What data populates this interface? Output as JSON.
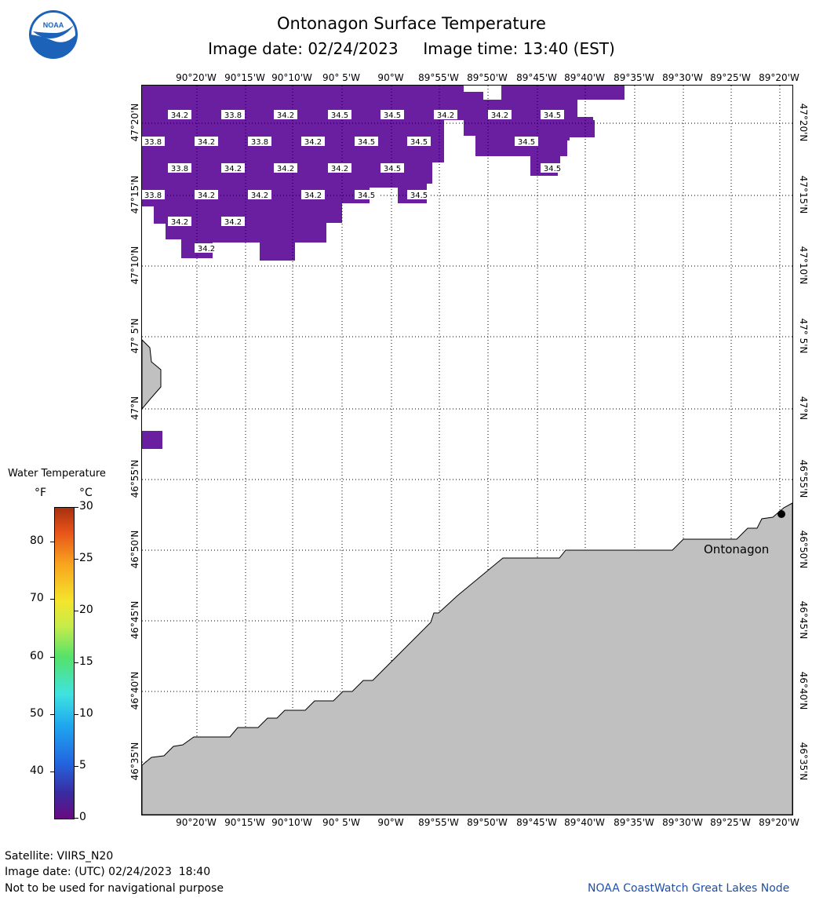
{
  "header": {
    "title": "Ontonagon Surface Temperature",
    "image_date": "Image date: 02/24/2023",
    "image_time": "Image time: 13:40 (EST)"
  },
  "logo": {
    "text": "NOAA"
  },
  "map": {
    "lon_labels": [
      "90°20'W",
      "90°15'W",
      "90°10'W",
      "90° 5'W",
      "90°W",
      "89°55'W",
      "89°50'W",
      "89°45'W",
      "89°40'W",
      "89°35'W",
      "89°30'W",
      "89°25'W",
      "89°20'W"
    ],
    "lat_labels": [
      "47°20'N",
      "47°15'N",
      "47°10'N",
      "47° 5'N",
      "47°N",
      "46°55'N",
      "46°50'N",
      "46°45'N",
      "46°40'N",
      "46°35'N"
    ],
    "water_color": "#6a1fa0",
    "land_color": "#c0c0c0",
    "place_label": "Ontonagon",
    "temperature_labels": [
      {
        "value": "34.2",
        "lon": "90°20'W",
        "lat": "47°19.8'N"
      },
      {
        "value": "33.8",
        "lon": "90°16'W",
        "lat": "47°19.8'N"
      },
      {
        "value": "34.2",
        "lon": "90°10'W",
        "lat": "47°19.8'N"
      },
      {
        "value": "34.5",
        "lon": "90°5'W",
        "lat": "47°19.8'N"
      },
      {
        "value": "34.5",
        "lon": "90°0'W",
        "lat": "47°19.8'N"
      },
      {
        "value": "34.2",
        "lon": "89°54'W",
        "lat": "47°19.8'N"
      },
      {
        "value": "34.2",
        "lon": "89°49'W",
        "lat": "47°19.8'N"
      },
      {
        "value": "34.5",
        "lon": "89°43'W",
        "lat": "47°19.8'N"
      },
      {
        "value": "33.8",
        "lon": "90°24'W",
        "lat": "47°18'N"
      },
      {
        "value": "34.2",
        "lon": "90°19'W",
        "lat": "47°18'N"
      },
      {
        "value": "33.8",
        "lon": "90°13'W",
        "lat": "47°18'N"
      },
      {
        "value": "34.2",
        "lon": "90°7'W",
        "lat": "47°18'N"
      },
      {
        "value": "34.5",
        "lon": "90°2'W",
        "lat": "47°18'N"
      },
      {
        "value": "34.5",
        "lon": "89°56'W",
        "lat": "47°18'N"
      },
      {
        "value": "34.5",
        "lon": "89°46'W",
        "lat": "47°18'N"
      },
      {
        "value": "33.8",
        "lon": "90°21'W",
        "lat": "47°16.5'N"
      },
      {
        "value": "34.2",
        "lon": "90°16'W",
        "lat": "47°16.5'N"
      },
      {
        "value": "34.2",
        "lon": "90°10'W",
        "lat": "47°16.5'N"
      },
      {
        "value": "34.2",
        "lon": "90°4'W",
        "lat": "47°16.5'N"
      },
      {
        "value": "34.5",
        "lon": "89°59'W",
        "lat": "47°16.5'N"
      },
      {
        "value": "34.5",
        "lon": "89°43'W",
        "lat": "47°16.5'N"
      },
      {
        "value": "33.8",
        "lon": "90°24'W",
        "lat": "47°15'N"
      },
      {
        "value": "34.2",
        "lon": "90°19'W",
        "lat": "47°15'N"
      },
      {
        "value": "34.2",
        "lon": "90°13'W",
        "lat": "47°15'N"
      },
      {
        "value": "34.2",
        "lon": "90°7'W",
        "lat": "47°15'N"
      },
      {
        "value": "34.5",
        "lon": "90°2'W",
        "lat": "47°15'N"
      },
      {
        "value": "34.5",
        "lon": "89°56'W",
        "lat": "47°15'N"
      },
      {
        "value": "34.2",
        "lon": "90°21'W",
        "lat": "47°13.5'N"
      },
      {
        "value": "34.2",
        "lon": "90°16'W",
        "lat": "47°13.5'N"
      },
      {
        "value": "34.2",
        "lon": "90°19'W",
        "lat": "47°12'N"
      }
    ]
  },
  "legend": {
    "title": "Water Temperature",
    "unit_f": "°F",
    "unit_c": "°C",
    "f_ticks": [
      "80",
      "70",
      "60",
      "50",
      "40"
    ],
    "c_ticks": [
      "30",
      "25",
      "20",
      "15",
      "10",
      "5",
      "0"
    ],
    "f_range": [
      32,
      86
    ],
    "c_range": [
      0,
      30
    ]
  },
  "footer": {
    "satellite": "Satellite: VIIRS_N20",
    "utc_date": "Image date: (UTC) 02/24/2023  18:40",
    "disclaimer": "Not to be used for navigational purpose",
    "credit": "NOAA CoastWatch Great Lakes Node"
  }
}
